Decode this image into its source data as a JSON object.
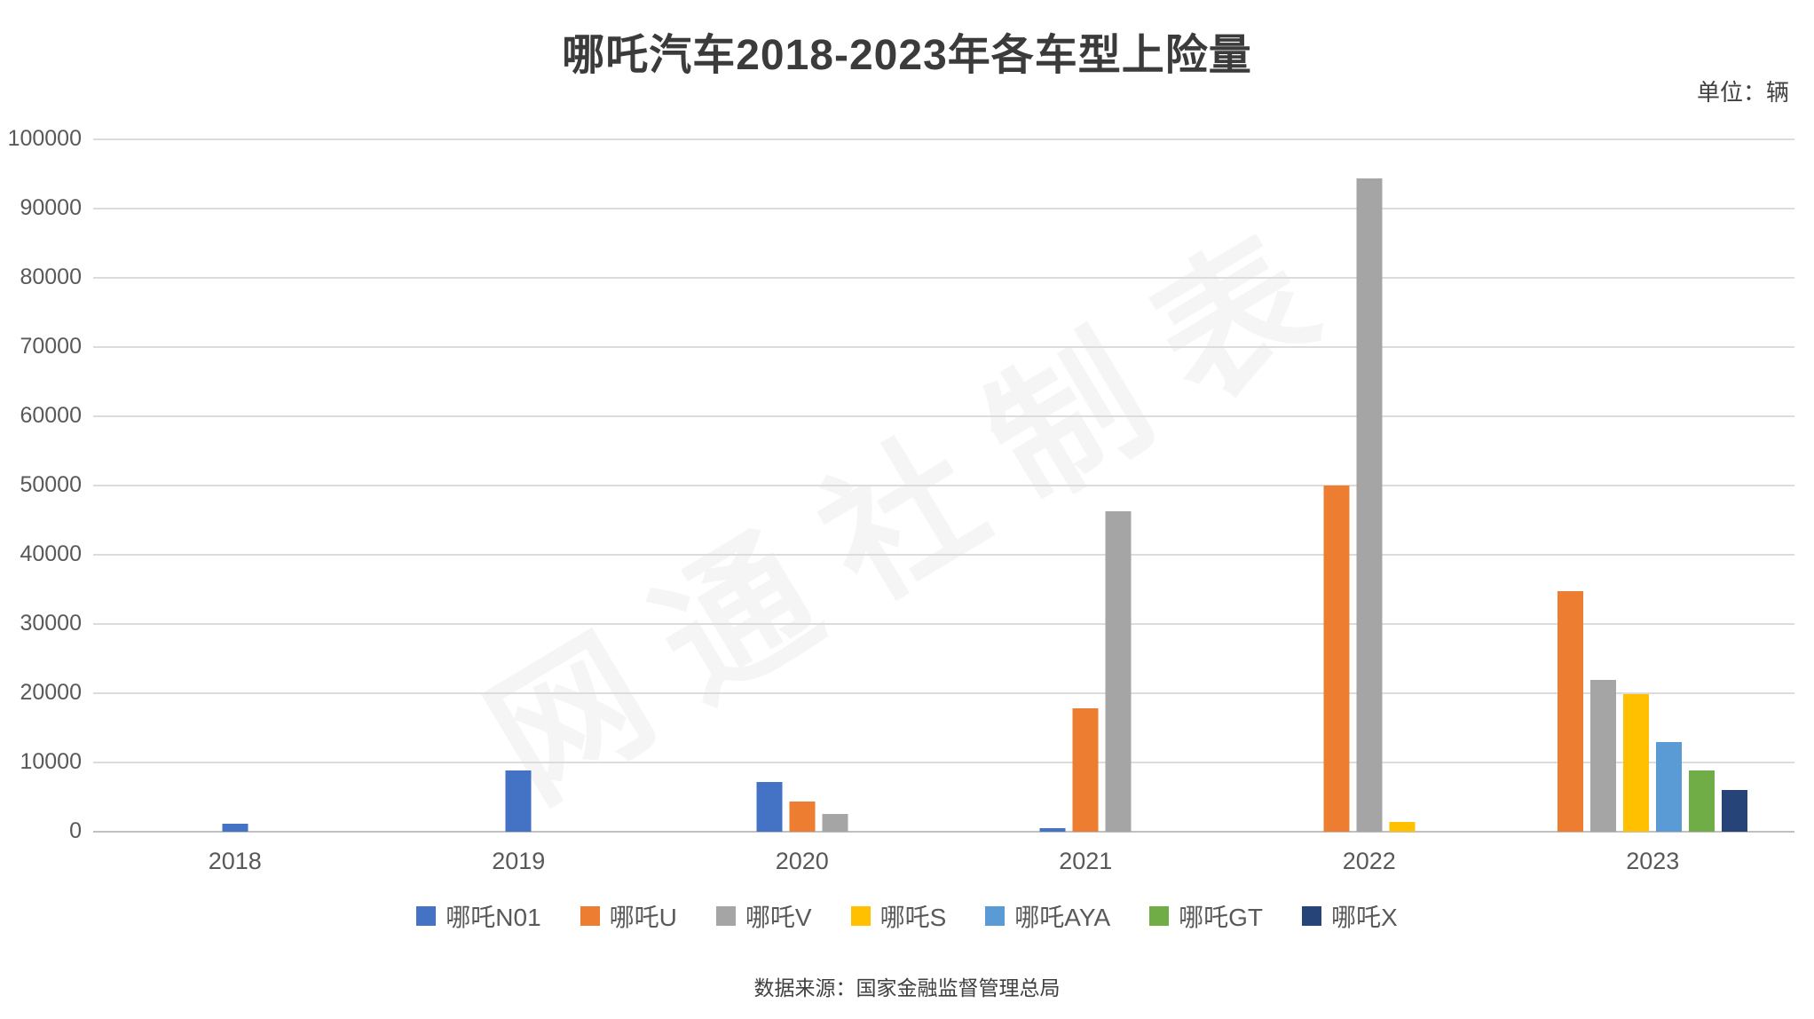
{
  "title": "哪吒汽车2018-2023年各车型上险量",
  "unit_note": "单位：辆",
  "source_note": "数据来源：国家金融监督管理总局",
  "watermark": "网通社制表",
  "colors": {
    "grid": "#dcdcdc",
    "axis": "#c0c0c0",
    "tick_text": "#595959",
    "title_text": "#3b3b3b"
  },
  "chart_data": {
    "type": "bar",
    "title": "哪吒汽车2018-2023年各车型上险量",
    "unit": "辆",
    "xlabel": "",
    "ylabel": "",
    "ylim": [
      0,
      100000
    ],
    "ytick_step": 10000,
    "grid": "horizontal",
    "legend_position": "bottom",
    "categories": [
      "2018",
      "2019",
      "2020",
      "2021",
      "2022",
      "2023"
    ],
    "series": [
      {
        "key": "n01",
        "name": "哪吒N01",
        "color": "#4472C4",
        "values": [
          1200,
          8900,
          7200,
          500,
          null,
          null
        ]
      },
      {
        "key": "u",
        "name": "哪吒U",
        "color": "#ED7D31",
        "values": [
          null,
          null,
          4300,
          17800,
          50000,
          34800
        ]
      },
      {
        "key": "v",
        "name": "哪吒V",
        "color": "#A5A5A5",
        "values": [
          null,
          null,
          2600,
          46300,
          94300,
          21900
        ]
      },
      {
        "key": "s",
        "name": "哪吒S",
        "color": "#FFC000",
        "values": [
          null,
          null,
          null,
          null,
          1400,
          19900
        ]
      },
      {
        "key": "aya",
        "name": "哪吒AYA",
        "color": "#5B9BD5",
        "values": [
          null,
          null,
          null,
          null,
          null,
          13000
        ]
      },
      {
        "key": "gt",
        "name": "哪吒GT",
        "color": "#70AD47",
        "values": [
          null,
          null,
          null,
          null,
          null,
          8900
        ]
      },
      {
        "key": "x",
        "name": "哪吒X",
        "color": "#264478",
        "values": [
          null,
          null,
          null,
          null,
          null,
          6000
        ]
      }
    ]
  }
}
